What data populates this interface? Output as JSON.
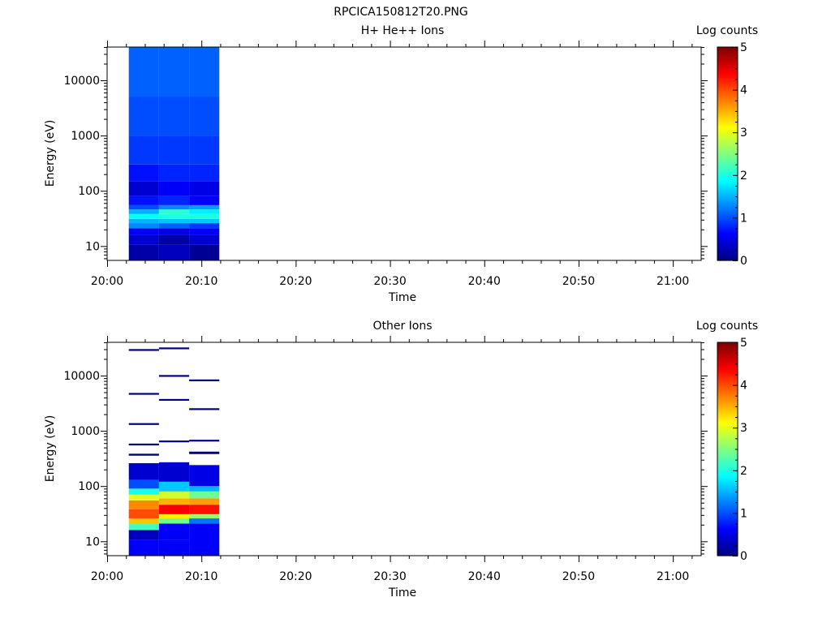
{
  "figure_title": "RPCICA150812T20.PNG",
  "chart_data": [
    {
      "type": "heatmap",
      "title": "H+ He++ Ions",
      "xlabel": "Time",
      "ylabel": "Energy (eV)",
      "x_ticks": [
        "20:00",
        "20:10",
        "20:20",
        "20:30",
        "20:40",
        "20:50",
        "21:00"
      ],
      "y_ticks": [
        "10",
        "100",
        "1000",
        "10000"
      ],
      "ylim": [
        5.5,
        40000
      ],
      "xlim_minutes": [
        0,
        63
      ],
      "log_y": true,
      "colorbar": {
        "label": "Log counts",
        "ticks": [
          "0",
          "1",
          "2",
          "3",
          "4",
          "5"
        ],
        "range": [
          0,
          5
        ]
      },
      "columns": [
        {
          "start_min": 2.3,
          "end_min": 5.5,
          "bins": [
            {
              "e_lo": 5.5,
              "e_hi": 10.5,
              "v": 0.2
            },
            {
              "e_lo": 10.5,
              "e_hi": 16,
              "v": 0.4
            },
            {
              "e_lo": 16,
              "e_hi": 21,
              "v": 0.6
            },
            {
              "e_lo": 21,
              "e_hi": 26,
              "v": 1.3
            },
            {
              "e_lo": 26,
              "e_hi": 31,
              "v": 1.5
            },
            {
              "e_lo": 31,
              "e_hi": 38,
              "v": 1.9
            },
            {
              "e_lo": 38,
              "e_hi": 46,
              "v": 1.5
            },
            {
              "e_lo": 46,
              "e_hi": 55,
              "v": 1.0
            },
            {
              "e_lo": 55,
              "e_hi": 80,
              "v": 0.7
            },
            {
              "e_lo": 80,
              "e_hi": 150,
              "v": 0.4
            },
            {
              "e_lo": 150,
              "e_hi": 300,
              "v": 0.7
            },
            {
              "e_lo": 300,
              "e_hi": 1000,
              "v": 0.9
            },
            {
              "e_lo": 1000,
              "e_hi": 5000,
              "v": 1.0
            },
            {
              "e_lo": 5000,
              "e_hi": 40000,
              "v": 1.1
            }
          ]
        },
        {
          "start_min": 5.5,
          "end_min": 8.7,
          "bins": [
            {
              "e_lo": 5.5,
              "e_hi": 10.5,
              "v": 0.3
            },
            {
              "e_lo": 10.5,
              "e_hi": 16,
              "v": 0.2
            },
            {
              "e_lo": 16,
              "e_hi": 21,
              "v": 0.5
            },
            {
              "e_lo": 21,
              "e_hi": 26,
              "v": 1.1
            },
            {
              "e_lo": 26,
              "e_hi": 31,
              "v": 1.6
            },
            {
              "e_lo": 31,
              "e_hi": 38,
              "v": 2.0
            },
            {
              "e_lo": 38,
              "e_hi": 46,
              "v": 2.1
            },
            {
              "e_lo": 46,
              "e_hi": 55,
              "v": 1.3
            },
            {
              "e_lo": 55,
              "e_hi": 80,
              "v": 0.8
            },
            {
              "e_lo": 80,
              "e_hi": 150,
              "v": 0.6
            },
            {
              "e_lo": 150,
              "e_hi": 300,
              "v": 0.8
            },
            {
              "e_lo": 300,
              "e_hi": 1000,
              "v": 0.9
            },
            {
              "e_lo": 1000,
              "e_hi": 5000,
              "v": 1.0
            },
            {
              "e_lo": 5000,
              "e_hi": 40000,
              "v": 1.1
            }
          ]
        },
        {
          "start_min": 8.7,
          "end_min": 11.9,
          "bins": [
            {
              "e_lo": 5.5,
              "e_hi": 10.5,
              "v": 0.1
            },
            {
              "e_lo": 10.5,
              "e_hi": 16,
              "v": 0.4
            },
            {
              "e_lo": 16,
              "e_hi": 21,
              "v": 0.6
            },
            {
              "e_lo": 21,
              "e_hi": 26,
              "v": 0.9
            },
            {
              "e_lo": 26,
              "e_hi": 31,
              "v": 1.6
            },
            {
              "e_lo": 31,
              "e_hi": 38,
              "v": 2.0
            },
            {
              "e_lo": 38,
              "e_hi": 46,
              "v": 1.8
            },
            {
              "e_lo": 46,
              "e_hi": 55,
              "v": 1.4
            },
            {
              "e_lo": 55,
              "e_hi": 80,
              "v": 0.6
            },
            {
              "e_lo": 80,
              "e_hi": 150,
              "v": 0.5
            },
            {
              "e_lo": 150,
              "e_hi": 300,
              "v": 0.8
            },
            {
              "e_lo": 300,
              "e_hi": 1000,
              "v": 0.9
            },
            {
              "e_lo": 1000,
              "e_hi": 5000,
              "v": 1.0
            },
            {
              "e_lo": 5000,
              "e_hi": 40000,
              "v": 1.1
            }
          ]
        }
      ]
    },
    {
      "type": "heatmap",
      "title": "Other Ions",
      "xlabel": "Time",
      "ylabel": "Energy (eV)",
      "x_ticks": [
        "20:00",
        "20:10",
        "20:20",
        "20:30",
        "20:40",
        "20:50",
        "21:00"
      ],
      "y_ticks": [
        "10",
        "100",
        "1000",
        "10000"
      ],
      "ylim": [
        5.5,
        40000
      ],
      "xlim_minutes": [
        0,
        63
      ],
      "log_y": true,
      "colorbar": {
        "label": "Log counts",
        "ticks": [
          "0",
          "1",
          "2",
          "3",
          "4",
          "5"
        ],
        "range": [
          0,
          5
        ]
      },
      "columns": [
        {
          "start_min": 2.3,
          "end_min": 5.5,
          "bins": [
            {
              "e_lo": 5.5,
              "e_hi": 10.5,
              "v": 0.6
            },
            {
              "e_lo": 10.5,
              "e_hi": 16,
              "v": 0.3
            },
            {
              "e_lo": 16,
              "e_hi": 21,
              "v": 2.2
            },
            {
              "e_lo": 21,
              "e_hi": 26,
              "v": 3.4
            },
            {
              "e_lo": 26,
              "e_hi": 38,
              "v": 4.0
            },
            {
              "e_lo": 38,
              "e_hi": 55,
              "v": 3.7
            },
            {
              "e_lo": 55,
              "e_hi": 70,
              "v": 3.0
            },
            {
              "e_lo": 70,
              "e_hi": 90,
              "v": 2.0
            },
            {
              "e_lo": 90,
              "e_hi": 130,
              "v": 1.0
            },
            {
              "e_lo": 130,
              "e_hi": 260,
              "v": 0.4
            },
            {
              "e_lo": 355,
              "e_hi": 385,
              "v": 0.0
            },
            {
              "e_lo": 545,
              "e_hi": 575,
              "v": 0.0
            },
            {
              "e_lo": 1280,
              "e_hi": 1340,
              "v": 0.0
            },
            {
              "e_lo": 4500,
              "e_hi": 4700,
              "v": 0.0
            },
            {
              "e_lo": 28000,
              "e_hi": 29500,
              "v": 0.0
            }
          ]
        },
        {
          "start_min": 5.5,
          "end_min": 8.7,
          "bins": [
            {
              "e_lo": 5.5,
              "e_hi": 10.5,
              "v": 0.6
            },
            {
              "e_lo": 10.5,
              "e_hi": 21,
              "v": 0.6
            },
            {
              "e_lo": 21,
              "e_hi": 26,
              "v": 2.4
            },
            {
              "e_lo": 26,
              "e_hi": 31,
              "v": 3.2
            },
            {
              "e_lo": 31,
              "e_hi": 46,
              "v": 4.4
            },
            {
              "e_lo": 46,
              "e_hi": 60,
              "v": 3.5
            },
            {
              "e_lo": 60,
              "e_hi": 80,
              "v": 2.9
            },
            {
              "e_lo": 80,
              "e_hi": 120,
              "v": 1.6
            },
            {
              "e_lo": 120,
              "e_hi": 270,
              "v": 0.4
            },
            {
              "e_lo": 620,
              "e_hi": 660,
              "v": 0.0
            },
            {
              "e_lo": 3500,
              "e_hi": 3700,
              "v": 0.0
            },
            {
              "e_lo": 9500,
              "e_hi": 9900,
              "v": 0.0
            },
            {
              "e_lo": 30000,
              "e_hi": 31500,
              "v": 0.0
            }
          ]
        },
        {
          "start_min": 8.7,
          "end_min": 11.9,
          "bins": [
            {
              "e_lo": 5.5,
              "e_hi": 21,
              "v": 0.6
            },
            {
              "e_lo": 21,
              "e_hi": 26,
              "v": 1.2
            },
            {
              "e_lo": 26,
              "e_hi": 31,
              "v": 2.6
            },
            {
              "e_lo": 31,
              "e_hi": 46,
              "v": 4.3
            },
            {
              "e_lo": 46,
              "e_hi": 60,
              "v": 3.6
            },
            {
              "e_lo": 60,
              "e_hi": 80,
              "v": 2.4
            },
            {
              "e_lo": 80,
              "e_hi": 100,
              "v": 1.5
            },
            {
              "e_lo": 100,
              "e_hi": 240,
              "v": 0.5
            },
            {
              "e_lo": 380,
              "e_hi": 420,
              "v": 0.0
            },
            {
              "e_lo": 640,
              "e_hi": 680,
              "v": 0.0
            },
            {
              "e_lo": 2380,
              "e_hi": 2480,
              "v": 0.0
            },
            {
              "e_lo": 7900,
              "e_hi": 8500,
              "v": 0.0
            }
          ]
        }
      ]
    }
  ]
}
